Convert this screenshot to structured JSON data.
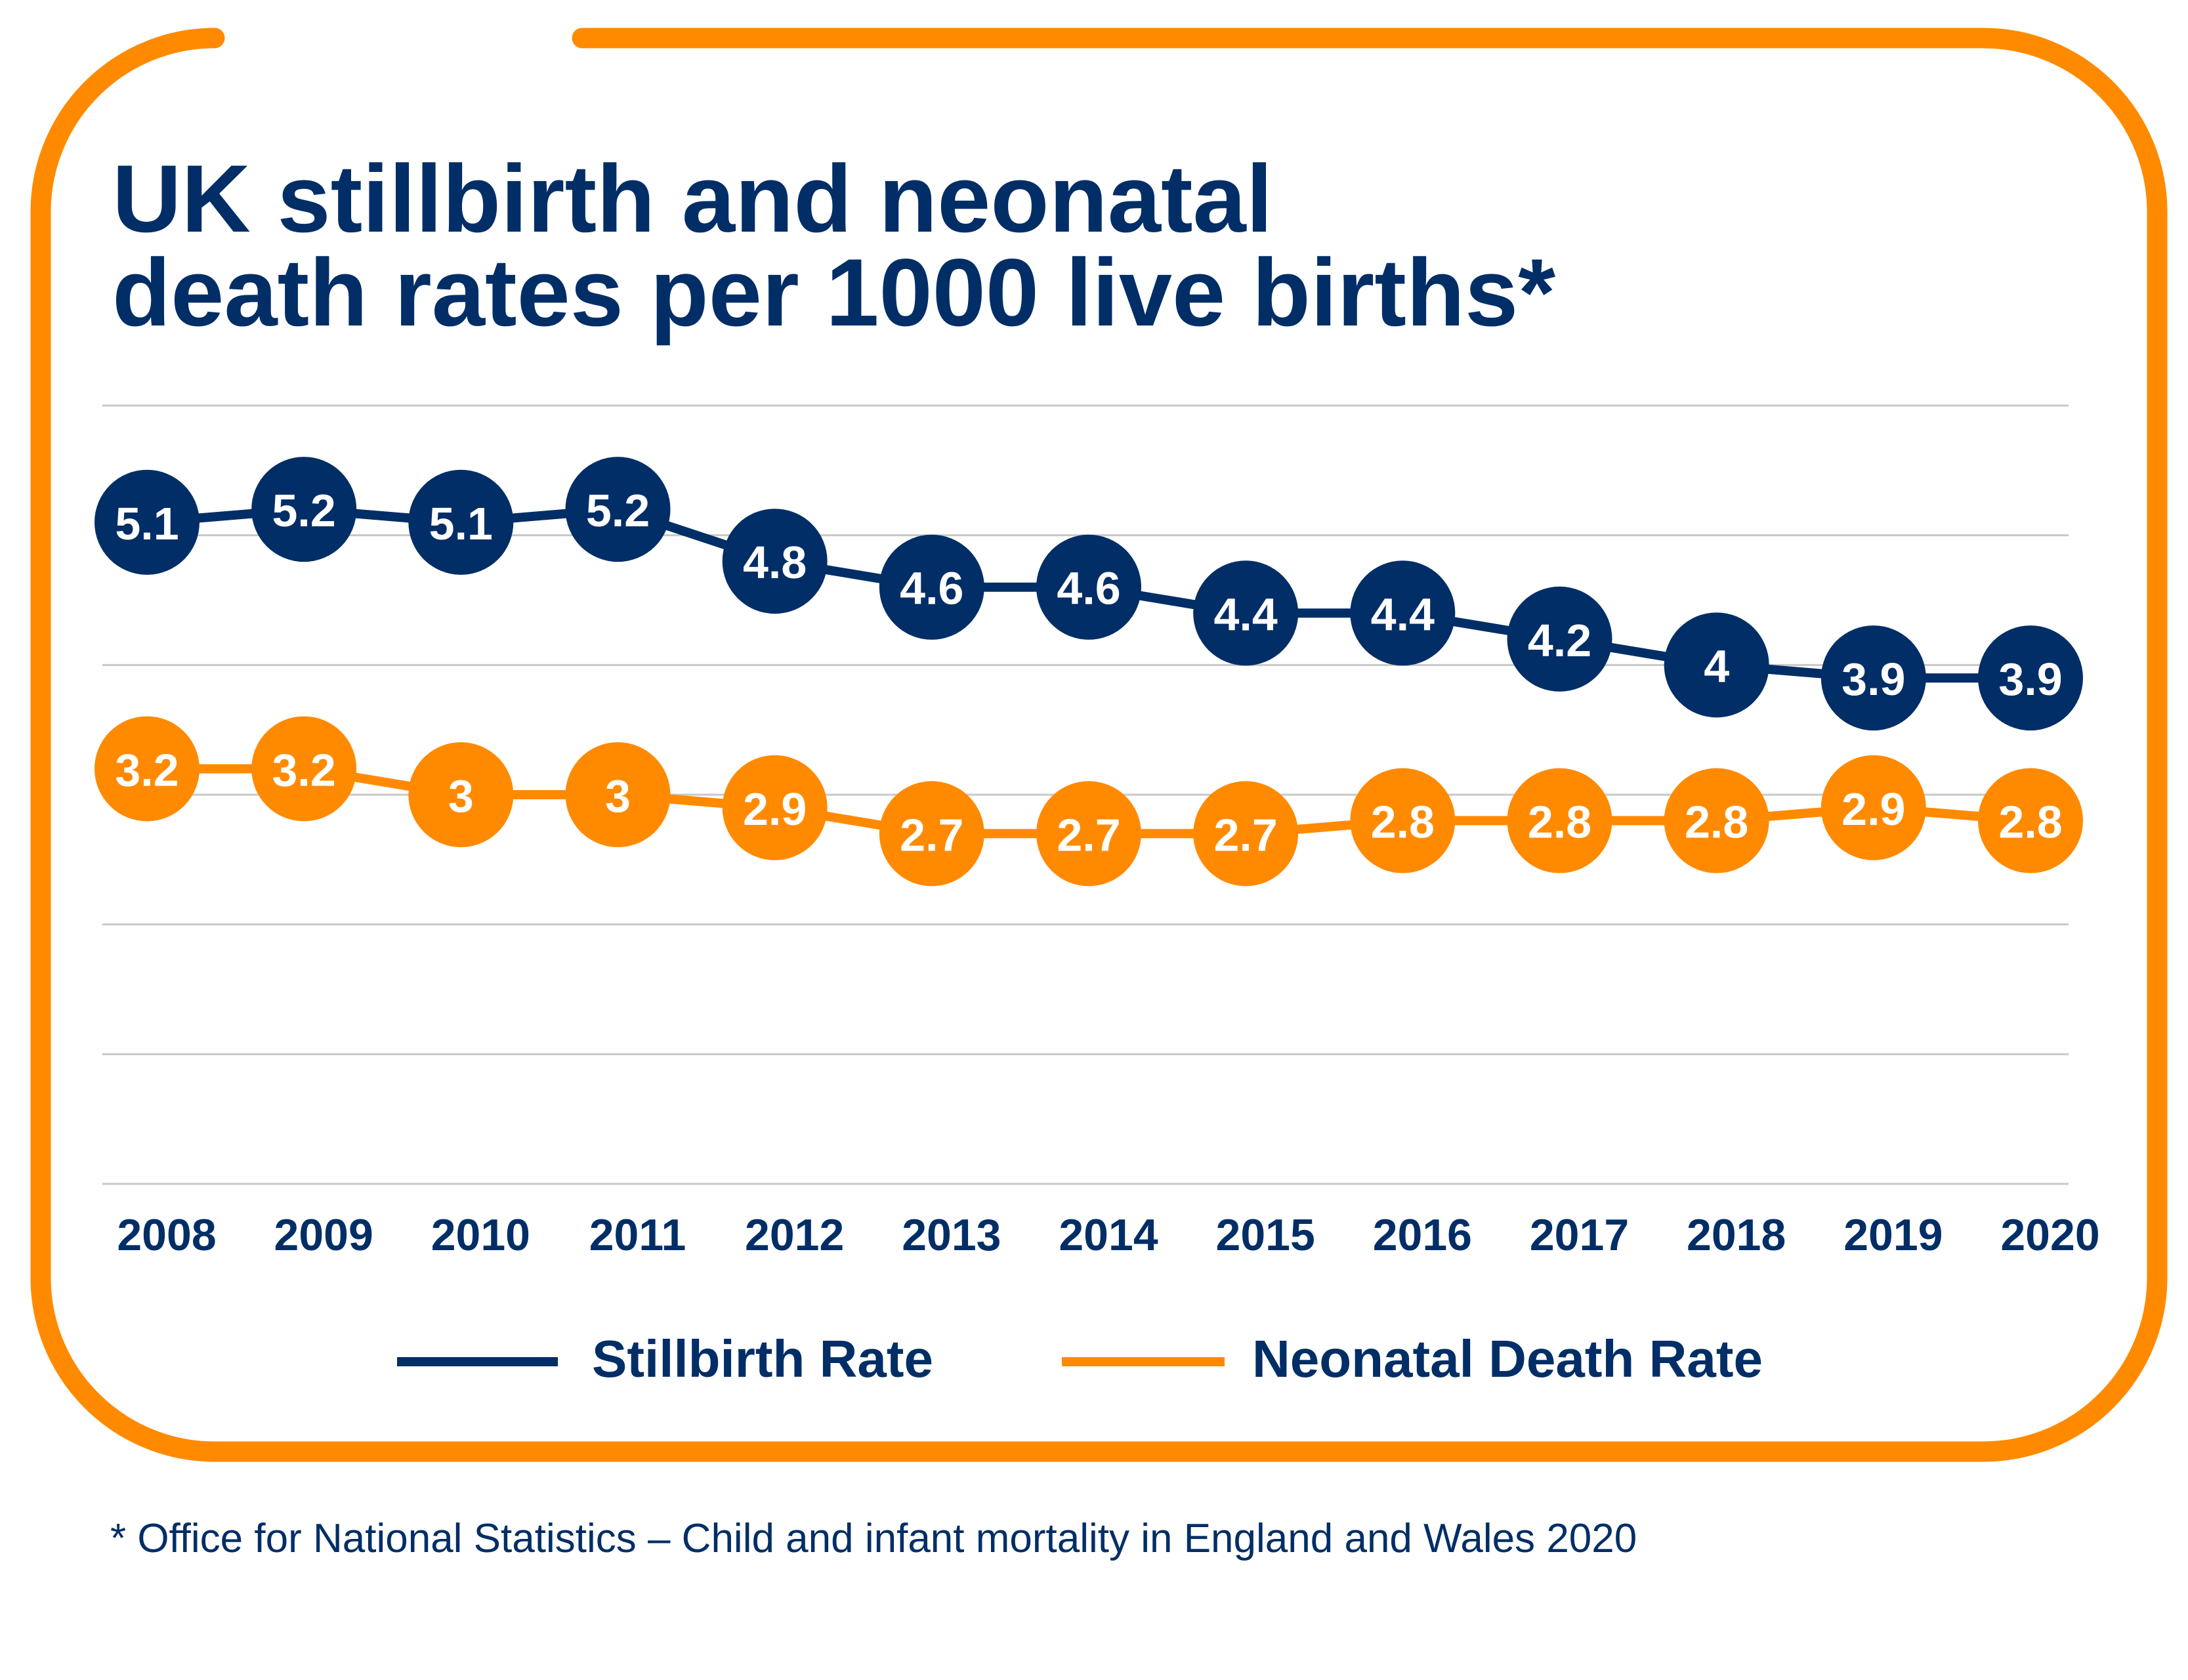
{
  "chart_data": {
    "type": "line",
    "title_lines": [
      "UK stillbirth and neonatal",
      "death rates per 1000 live births*"
    ],
    "categories": [
      "2008",
      "2009",
      "2010",
      "2011",
      "2012",
      "2013",
      "2014",
      "2015",
      "2016",
      "2017",
      "2018",
      "2019",
      "2020"
    ],
    "series": [
      {
        "name": "Stillbirth Rate",
        "color": "#012e66",
        "values": [
          5.1,
          5.2,
          5.1,
          5.2,
          4.8,
          4.6,
          4.6,
          4.4,
          4.4,
          4.2,
          4,
          3.9,
          3.9
        ],
        "labels": [
          "5.1",
          "5.2",
          "5.1",
          "5.2",
          "4.8",
          "4.6",
          "4.6",
          "4.4",
          "4.4",
          "4.2",
          "4",
          "3.9",
          "3.9"
        ]
      },
      {
        "name": "Neonatal Death Rate",
        "color": "#ff8a00",
        "values": [
          3.2,
          3.2,
          3,
          3,
          2.9,
          2.7,
          2.7,
          2.7,
          2.8,
          2.8,
          2.8,
          2.9,
          2.8
        ],
        "labels": [
          "3.2",
          "3.2",
          "3",
          "3",
          "2.9",
          "2.7",
          "2.7",
          "2.7",
          "2.8",
          "2.8",
          "2.8",
          "2.9",
          "2.8"
        ]
      }
    ],
    "ylim": [
      0,
      6
    ],
    "grid": true,
    "y_tick_labels_shown": false,
    "legend_placement": "bottom",
    "footnote": "* Office for National Statistics – Child and infant mortality in England and Wales 2020"
  },
  "colors": {
    "navy": "#012e66",
    "orange": "#ff8a00",
    "grid": "#c8c8c8"
  }
}
